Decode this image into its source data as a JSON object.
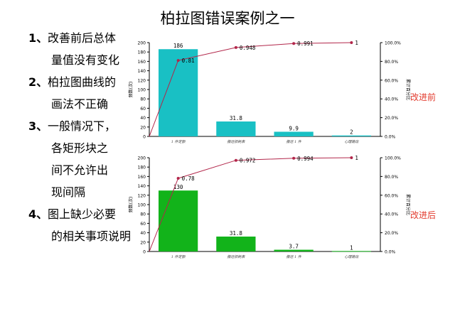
{
  "slide": {
    "title": "柏拉图错误案例之一",
    "points": [
      {
        "num": "1、",
        "lines": [
          "改善前后总体",
          "量值没有变化"
        ]
      },
      {
        "num": "2、",
        "lines": [
          "柏拉图曲线的",
          "画法不正确"
        ]
      },
      {
        "num": "3、",
        "lines": [
          "一般情况下，",
          "各矩形块之",
          "间不允许出",
          "现间隔"
        ]
      },
      {
        "num": "4、",
        "lines": [
          "图上缺少必要",
          "的相关事项说明"
        ]
      }
    ],
    "before_label": "改进前",
    "after_label": "改进后"
  },
  "colors": {
    "before_bar": "#19c0c4",
    "after_bar": "#12b31a",
    "curve": "#b2264a",
    "side_label": "#e23b2e"
  },
  "chart_data": [
    {
      "type": "bar",
      "categories": [
        "1 件定额",
        "搬运损耗表",
        "搬运 1 件",
        "心理输出"
      ],
      "values": [
        186,
        31.8,
        9.9,
        2
      ],
      "value_labels": [
        "186",
        "31.8",
        "9.9",
        "2"
      ],
      "cumulative": [
        0.81,
        0.948,
        0.991,
        1
      ],
      "cumulative_labels": [
        "0.81",
        "0.948",
        "0.991",
        "1"
      ],
      "ylabel": "频数(次)",
      "y2label": "累计百分比",
      "ylim": [
        0,
        200
      ],
      "yticks": [
        "0",
        "20",
        "40",
        "60",
        "80",
        "100",
        "120",
        "140",
        "160",
        "180",
        "200"
      ],
      "y2lim": [
        0,
        1
      ],
      "y2ticks": [
        "0.0%",
        "20.0%",
        "40.0%",
        "60.0%",
        "80.0%",
        "100.0%"
      ]
    },
    {
      "type": "bar",
      "categories": [
        "1 件定额",
        "搬运损耗表",
        "搬运 1 件",
        "心理输出"
      ],
      "values": [
        130,
        31.8,
        3.7,
        1
      ],
      "value_labels": [
        "130",
        "31.8",
        "3.7",
        "1"
      ],
      "cumulative": [
        0.78,
        0.972,
        0.994,
        1
      ],
      "cumulative_labels": [
        "0.78",
        "0.972",
        "0.994",
        "1"
      ],
      "ylabel": "频数(次)",
      "y2label": "累计百分比",
      "ylim": [
        0,
        200
      ],
      "yticks": [
        "0",
        "20",
        "40",
        "60",
        "80",
        "100",
        "120",
        "140",
        "160",
        "180",
        "200"
      ],
      "y2lim": [
        0,
        1
      ],
      "y2ticks": [
        "0.0%",
        "20.0%",
        "40.0%",
        "60.0%",
        "80.0%",
        "100.0%"
      ]
    }
  ]
}
